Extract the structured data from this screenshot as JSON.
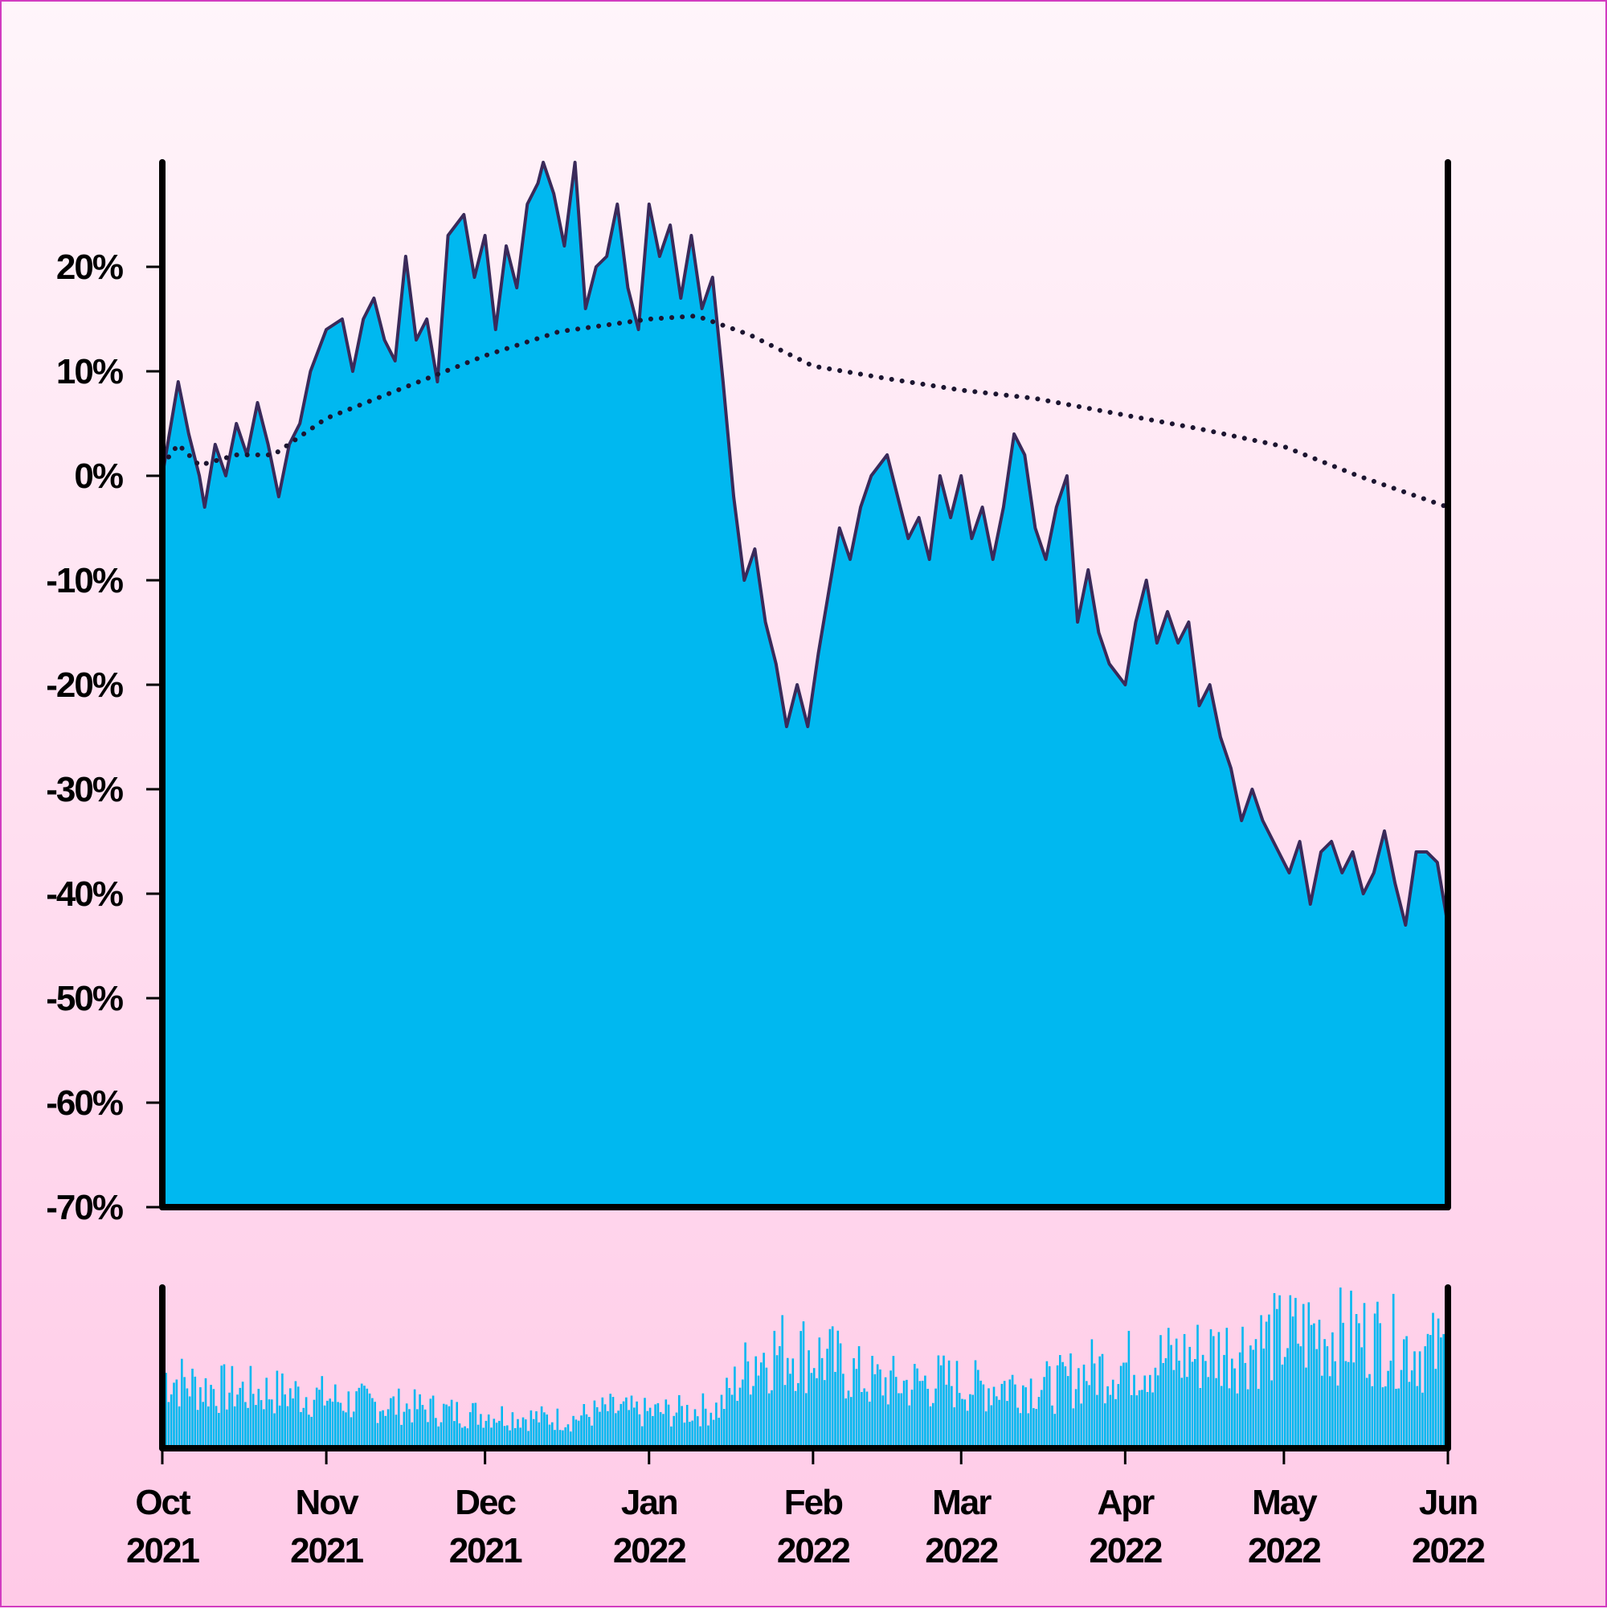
{
  "chart_data": [
    {
      "type": "area",
      "name": "price",
      "color": "#00b8f0",
      "line_color": "#3a2a5a",
      "ma_color": "#1c1530",
      "ylim": [
        -70,
        30
      ],
      "yticks": [
        20,
        10,
        0,
        -10,
        -20,
        -30,
        -40,
        -50,
        -60,
        -70
      ],
      "ytick_labels": [
        "20%",
        "10%",
        "0%",
        "-10%",
        "-20%",
        "-30%",
        "-40%",
        "-50%",
        "-60%",
        "-70%"
      ],
      "xlim": [
        "2021-10-01",
        "2022-06-01"
      ],
      "series": [
        {
          "kind": "area",
          "points": [
            [
              "2021-10-01",
              0
            ],
            [
              "2021-10-04",
              9
            ],
            [
              "2021-10-06",
              4
            ],
            [
              "2021-10-08",
              0
            ],
            [
              "2021-10-09",
              -3
            ],
            [
              "2021-10-11",
              3
            ],
            [
              "2021-10-13",
              0
            ],
            [
              "2021-10-15",
              5
            ],
            [
              "2021-10-17",
              2
            ],
            [
              "2021-10-19",
              7
            ],
            [
              "2021-10-21",
              3
            ],
            [
              "2021-10-23",
              -2
            ],
            [
              "2021-10-25",
              3
            ],
            [
              "2021-10-27",
              5
            ],
            [
              "2021-10-29",
              10
            ],
            [
              "2021-11-01",
              14
            ],
            [
              "2021-11-04",
              15
            ],
            [
              "2021-11-06",
              10
            ],
            [
              "2021-11-08",
              15
            ],
            [
              "2021-11-10",
              17
            ],
            [
              "2021-11-12",
              13
            ],
            [
              "2021-11-14",
              11
            ],
            [
              "2021-11-16",
              21
            ],
            [
              "2021-11-18",
              13
            ],
            [
              "2021-11-20",
              15
            ],
            [
              "2021-11-22",
              9
            ],
            [
              "2021-11-24",
              23
            ],
            [
              "2021-11-27",
              25
            ],
            [
              "2021-11-29",
              19
            ],
            [
              "2021-12-01",
              23
            ],
            [
              "2021-12-03",
              14
            ],
            [
              "2021-12-05",
              22
            ],
            [
              "2021-12-07",
              18
            ],
            [
              "2021-12-09",
              26
            ],
            [
              "2021-12-11",
              28
            ],
            [
              "2021-12-12",
              30
            ],
            [
              "2021-12-14",
              27
            ],
            [
              "2021-12-16",
              22
            ],
            [
              "2021-12-18",
              30
            ],
            [
              "2021-12-20",
              16
            ],
            [
              "2021-12-22",
              20
            ],
            [
              "2021-12-24",
              21
            ],
            [
              "2021-12-26",
              26
            ],
            [
              "2021-12-28",
              18
            ],
            [
              "2021-12-30",
              14
            ],
            [
              "2022-01-01",
              26
            ],
            [
              "2022-01-03",
              21
            ],
            [
              "2022-01-05",
              24
            ],
            [
              "2022-01-07",
              17
            ],
            [
              "2022-01-09",
              23
            ],
            [
              "2022-01-11",
              16
            ],
            [
              "2022-01-13",
              19
            ],
            [
              "2022-01-15",
              9
            ],
            [
              "2022-01-17",
              -2
            ],
            [
              "2022-01-19",
              -10
            ],
            [
              "2022-01-21",
              -7
            ],
            [
              "2022-01-23",
              -14
            ],
            [
              "2022-01-25",
              -18
            ],
            [
              "2022-01-27",
              -24
            ],
            [
              "2022-01-29",
              -20
            ],
            [
              "2022-01-31",
              -24
            ],
            [
              "2022-02-02",
              -17
            ],
            [
              "2022-02-04",
              -11
            ],
            [
              "2022-02-06",
              -5
            ],
            [
              "2022-02-08",
              -8
            ],
            [
              "2022-02-10",
              -3
            ],
            [
              "2022-02-12",
              0
            ],
            [
              "2022-02-15",
              2
            ],
            [
              "2022-02-17",
              -2
            ],
            [
              "2022-02-19",
              -6
            ],
            [
              "2022-02-21",
              -4
            ],
            [
              "2022-02-23",
              -8
            ],
            [
              "2022-02-25",
              0
            ],
            [
              "2022-02-27",
              -4
            ],
            [
              "2022-03-01",
              0
            ],
            [
              "2022-03-03",
              -6
            ],
            [
              "2022-03-05",
              -3
            ],
            [
              "2022-03-07",
              -8
            ],
            [
              "2022-03-09",
              -3
            ],
            [
              "2022-03-11",
              4
            ],
            [
              "2022-03-13",
              2
            ],
            [
              "2022-03-15",
              -5
            ],
            [
              "2022-03-17",
              -8
            ],
            [
              "2022-03-19",
              -3
            ],
            [
              "2022-03-21",
              0
            ],
            [
              "2022-03-23",
              -14
            ],
            [
              "2022-03-25",
              -9
            ],
            [
              "2022-03-27",
              -15
            ],
            [
              "2022-03-29",
              -18
            ],
            [
              "2022-04-01",
              -20
            ],
            [
              "2022-04-03",
              -14
            ],
            [
              "2022-04-05",
              -10
            ],
            [
              "2022-04-07",
              -16
            ],
            [
              "2022-04-09",
              -13
            ],
            [
              "2022-04-11",
              -16
            ],
            [
              "2022-04-13",
              -14
            ],
            [
              "2022-04-15",
              -22
            ],
            [
              "2022-04-17",
              -20
            ],
            [
              "2022-04-19",
              -25
            ],
            [
              "2022-04-21",
              -28
            ],
            [
              "2022-04-23",
              -33
            ],
            [
              "2022-04-25",
              -30
            ],
            [
              "2022-04-27",
              -33
            ],
            [
              "2022-04-30",
              -36
            ],
            [
              "2022-05-02",
              -38
            ],
            [
              "2022-05-04",
              -35
            ],
            [
              "2022-05-06",
              -41
            ],
            [
              "2022-05-08",
              -36
            ],
            [
              "2022-05-10",
              -35
            ],
            [
              "2022-05-12",
              -38
            ],
            [
              "2022-05-14",
              -36
            ],
            [
              "2022-05-16",
              -40
            ],
            [
              "2022-05-18",
              -38
            ],
            [
              "2022-05-20",
              -34
            ],
            [
              "2022-05-22",
              -39
            ],
            [
              "2022-05-24",
              -43
            ],
            [
              "2022-05-26",
              -36
            ],
            [
              "2022-05-28",
              -36
            ],
            [
              "2022-05-30",
              -37
            ],
            [
              "2022-06-01",
              -43
            ]
          ]
        },
        {
          "kind": "dotted-line",
          "points": [
            [
              "2021-10-01",
              1
            ],
            [
              "2021-10-04",
              3
            ],
            [
              "2021-10-08",
              1
            ],
            [
              "2021-10-15",
              2
            ],
            [
              "2021-10-22",
              2
            ],
            [
              "2021-11-01",
              5.5
            ],
            [
              "2021-11-15",
              8.3
            ],
            [
              "2021-12-01",
              11.5
            ],
            [
              "2021-12-15",
              13.8
            ],
            [
              "2022-01-01",
              15
            ],
            [
              "2022-01-10",
              15.3
            ],
            [
              "2022-01-20",
              13.5
            ],
            [
              "2022-02-01",
              10.5
            ],
            [
              "2022-02-15",
              9.3
            ],
            [
              "2022-03-01",
              8.2
            ],
            [
              "2022-03-15",
              7.4
            ],
            [
              "2022-04-01",
              5.8
            ],
            [
              "2022-04-15",
              4.5
            ],
            [
              "2022-05-01",
              2.8
            ],
            [
              "2022-05-15",
              0
            ],
            [
              "2022-06-01",
              -3
            ]
          ]
        }
      ]
    },
    {
      "type": "bar",
      "name": "volume",
      "color": "#00b8f0",
      "ylim": [
        0,
        100
      ],
      "x_ticks": [
        "2021-10-01",
        "2021-11-01",
        "2021-12-01",
        "2022-01-01",
        "2022-02-01",
        "2022-03-01",
        "2022-04-01",
        "2022-05-01",
        "2022-06-01"
      ],
      "x_tick_labels": [
        [
          "Oct",
          "2021"
        ],
        [
          "Nov",
          "2021"
        ],
        [
          "Dec",
          "2021"
        ],
        [
          "Jan",
          "2022"
        ],
        [
          "Feb",
          "2022"
        ],
        [
          "Mar",
          "2022"
        ],
        [
          "Apr",
          "2022"
        ],
        [
          "May",
          "2022"
        ],
        [
          "Jun",
          "2022"
        ]
      ],
      "weekly_values": [
        [
          "2021-10-01",
          45
        ],
        [
          "2021-10-08",
          38
        ],
        [
          "2021-10-15",
          36
        ],
        [
          "2021-10-22",
          35
        ],
        [
          "2021-10-29",
          33
        ],
        [
          "2021-11-05",
          29
        ],
        [
          "2021-11-12",
          27
        ],
        [
          "2021-11-19",
          25
        ],
        [
          "2021-11-26",
          22
        ],
        [
          "2021-12-03",
          21
        ],
        [
          "2021-12-10",
          19
        ],
        [
          "2021-12-17",
          18
        ],
        [
          "2021-12-24",
          24
        ],
        [
          "2021-12-31",
          22
        ],
        [
          "2022-01-07",
          23
        ],
        [
          "2022-01-14",
          25
        ],
        [
          "2022-01-21",
          58
        ],
        [
          "2022-01-28",
          62
        ],
        [
          "2022-02-04",
          55
        ],
        [
          "2022-02-11",
          42
        ],
        [
          "2022-02-18",
          40
        ],
        [
          "2022-02-25",
          42
        ],
        [
          "2022-03-04",
          38
        ],
        [
          "2022-03-11",
          40
        ],
        [
          "2022-03-18",
          38
        ],
        [
          "2022-03-25",
          48
        ],
        [
          "2022-04-01",
          52
        ],
        [
          "2022-04-08",
          55
        ],
        [
          "2022-04-15",
          58
        ],
        [
          "2022-04-22",
          62
        ],
        [
          "2022-04-29",
          68
        ],
        [
          "2022-05-06",
          72
        ],
        [
          "2022-05-13",
          70
        ],
        [
          "2022-05-20",
          68
        ],
        [
          "2022-05-27",
          60
        ]
      ]
    }
  ]
}
